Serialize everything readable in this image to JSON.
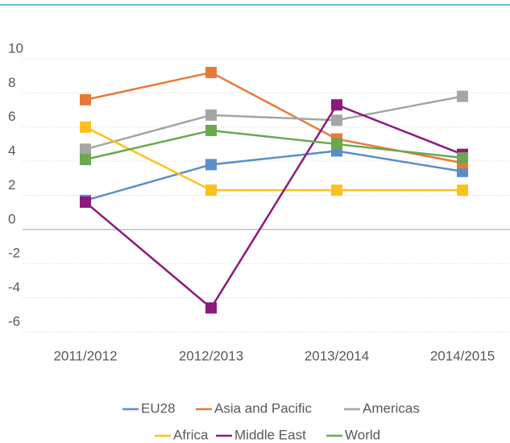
{
  "chart_data": {
    "type": "line",
    "categories": [
      "2011/2012",
      "2012/2013",
      "2013/2014",
      "2014/2015"
    ],
    "series": [
      {
        "name": "EU28",
        "color": "#5b8ec8",
        "values": [
          1.7,
          3.8,
          4.6,
          3.4
        ]
      },
      {
        "name": "Asia and Pacific",
        "color": "#e8793a",
        "values": [
          7.6,
          9.2,
          5.3,
          3.9
        ]
      },
      {
        "name": "Americas",
        "color": "#a5a5a5",
        "values": [
          4.7,
          6.7,
          6.4,
          7.8
        ]
      },
      {
        "name": "Africa",
        "color": "#fcc21b",
        "values": [
          6.0,
          2.3,
          2.3,
          2.3
        ]
      },
      {
        "name": "Middle East",
        "color": "#8b1a7e",
        "values": [
          1.6,
          -4.6,
          7.3,
          4.4
        ]
      },
      {
        "name": "World",
        "color": "#6aa84f",
        "values": [
          4.1,
          5.8,
          5.0,
          4.2
        ]
      }
    ],
    "ylim": [
      -6,
      10
    ],
    "yticks": [
      -6,
      -4,
      -2,
      0,
      2,
      4,
      6,
      8,
      10
    ],
    "grid": true
  }
}
